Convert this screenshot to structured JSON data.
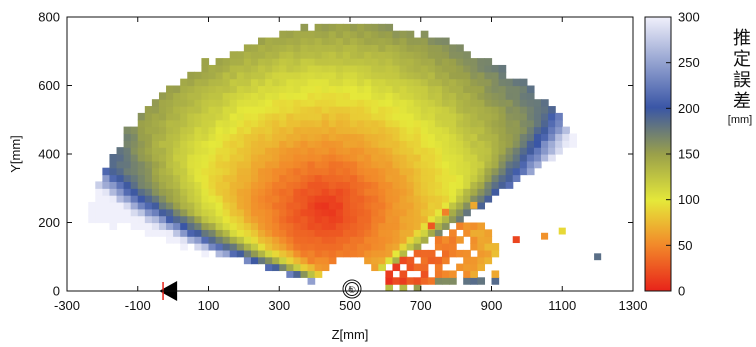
{
  "chart_data": {
    "type": "heatmap",
    "xlabel": "Z[mm]",
    "ylabel": "Y[mm]",
    "xlim": [
      -300,
      1300
    ],
    "ylim": [
      0,
      800
    ],
    "x_ticks": [
      "-300",
      "-100",
      "100",
      "300",
      "500",
      "700",
      "900",
      "1100",
      "1300"
    ],
    "y_ticks": [
      "0",
      "200",
      "400",
      "600",
      "800"
    ],
    "grid": false,
    "colorbar": {
      "title": [
        "推",
        "定",
        "誤",
        "差"
      ],
      "unit": "[mm]",
      "range": [
        0,
        300
      ],
      "ticks": [
        "0",
        "50",
        "100",
        "150",
        "200",
        "250",
        "300"
      ],
      "colormap": [
        "#e8231a",
        "#f28a2a",
        "#e5e83a",
        "#9aa04a",
        "#3a56a6",
        "#f0f0fb"
      ]
    },
    "fan_region": {
      "center": [
        500,
        0
      ],
      "inner_radius": 95,
      "outer_radius": 780,
      "angle_range_deg": [
        34,
        162
      ],
      "min_error_point": [
        430,
        240
      ],
      "min_error": 8
    },
    "scattered_cells": [
      {
        "z": 720,
        "y": 180,
        "err": 30
      },
      {
        "z": 760,
        "y": 220,
        "err": 55
      },
      {
        "z": 840,
        "y": 240,
        "err": 80
      },
      {
        "z": 1090,
        "y": 165,
        "err": 110
      },
      {
        "z": 1040,
        "y": 150,
        "err": 65
      },
      {
        "z": 960,
        "y": 140,
        "err": 20
      },
      {
        "z": 1190,
        "y": 90,
        "err": 220
      }
    ],
    "markers": [
      {
        "type": "camera-triangle",
        "z": 0,
        "y": 0
      },
      {
        "type": "red-tick",
        "z": -20,
        "y": 0
      },
      {
        "type": "target-circle",
        "z": 500,
        "y": 0,
        "label": "①"
      }
    ]
  }
}
